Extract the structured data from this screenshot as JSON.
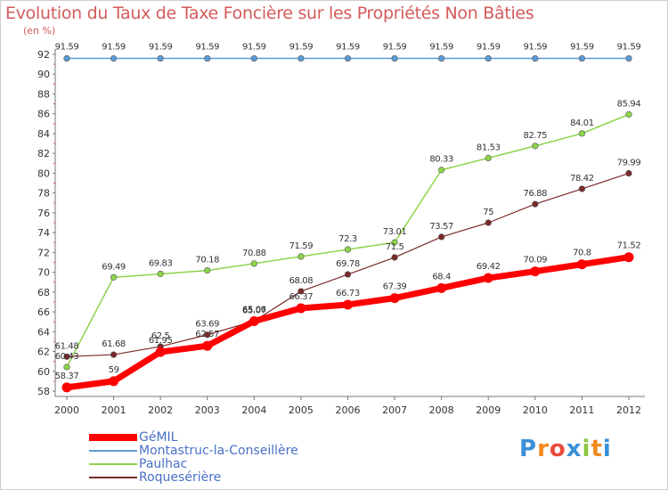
{
  "title": "Evolution du Taux de Taxe Foncière sur les Propriétés Non Bâties",
  "unit_label": "(en %)",
  "logo": {
    "text": "Proxiti",
    "colors": [
      "#3a8fd8",
      "#f08a1c",
      "#e84c3d",
      "#3a8fd8",
      "#8cc63e",
      "#f08a1c",
      "#3a8fd8"
    ]
  },
  "chart_data": {
    "type": "line",
    "x": [
      "2000",
      "2001",
      "2002",
      "2003",
      "2004",
      "2005",
      "2006",
      "2007",
      "2008",
      "2009",
      "2010",
      "2011",
      "2012"
    ],
    "ylim": [
      58,
      92
    ],
    "yticks": [
      "58",
      "60",
      "62",
      "64",
      "66",
      "68",
      "70",
      "72",
      "74",
      "76",
      "78",
      "80",
      "82",
      "84",
      "86",
      "88",
      "90",
      "92"
    ],
    "grid": false,
    "legend_position": "bottom-left",
    "series": [
      {
        "name": "Montastruc-la-Conseillère",
        "color": "#5b9bd5",
        "width": 1.5,
        "values": [
          91.59,
          91.59,
          91.59,
          91.59,
          91.59,
          91.59,
          91.59,
          91.59,
          91.59,
          91.59,
          91.59,
          91.59,
          91.59
        ],
        "labels": [
          "91.59",
          "91.59",
          "91.59",
          "91.59",
          "91.59",
          "91.59",
          "91.59",
          "91.59",
          "91.59",
          "91.59",
          "91.59",
          "91.59",
          "91.59"
        ]
      },
      {
        "name": "Paulhac",
        "color": "#8dd44a",
        "width": 1.5,
        "values": [
          60.43,
          69.49,
          69.83,
          70.18,
          70.88,
          71.59,
          72.3,
          73.01,
          80.33,
          81.53,
          82.75,
          84.01,
          85.94
        ],
        "labels": [
          "60.43",
          "69.49",
          "69.83",
          "70.18",
          "70.88",
          "71.59",
          "72.3",
          "73.01",
          "80.33",
          "81.53",
          "82.75",
          "84.01",
          "85.94"
        ]
      },
      {
        "name": "Roquesérière",
        "color": "#7b2a2a",
        "width": 1.2,
        "values": [
          61.48,
          61.68,
          62.5,
          63.69,
          65.07,
          68.08,
          69.78,
          71.5,
          73.57,
          75,
          76.88,
          78.42,
          79.99
        ],
        "labels": [
          "61.48",
          "61.68",
          "62.5",
          "63.69",
          "65.07",
          "68.08",
          "69.78",
          "71.5",
          "73.57",
          "75",
          "76.88",
          "78.42",
          "79.99"
        ]
      },
      {
        "name": "GéMIL",
        "color": "#ff0000",
        "width": 7,
        "values": [
          58.37,
          59,
          61.95,
          62.57,
          65.06,
          66.37,
          66.73,
          67.39,
          68.4,
          69.42,
          70.09,
          70.8,
          71.52
        ],
        "labels": [
          "58.37",
          "59",
          "61.95",
          "62.57",
          "65.06",
          "66.37",
          "66.73",
          "67.39",
          "68.4",
          "69.42",
          "70.09",
          "70.8",
          "71.52"
        ]
      }
    ],
    "legend_order": [
      "GéMIL",
      "Montastruc-la-Conseillère",
      "Paulhac",
      "Roquesérière"
    ]
  }
}
